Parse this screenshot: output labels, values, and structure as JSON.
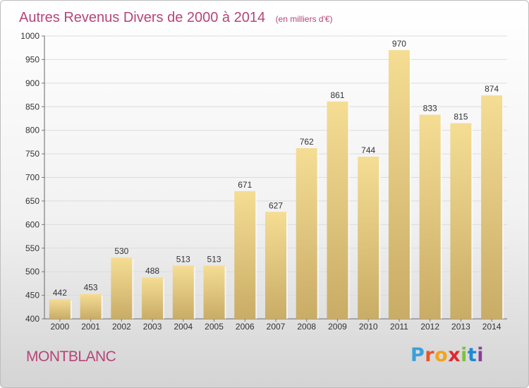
{
  "chart_data": {
    "type": "bar",
    "title": "Autres Revenus Divers de 2000 à 2014",
    "subtitle": "(en milliers d'€)",
    "categories": [
      "2000",
      "2001",
      "2002",
      "2003",
      "2004",
      "2005",
      "2006",
      "2007",
      "2008",
      "2009",
      "2010",
      "2011",
      "2012",
      "2013",
      "2014"
    ],
    "values": [
      442,
      453,
      530,
      488,
      513,
      513,
      671,
      627,
      762,
      861,
      744,
      970,
      833,
      815,
      874
    ],
    "ylim": [
      400,
      1000
    ],
    "yticks": [
      400,
      450,
      500,
      550,
      600,
      650,
      700,
      750,
      800,
      850,
      900,
      950,
      1000
    ],
    "grid": true,
    "legend": "none",
    "bar_color": "#f0d88a",
    "bar_shade": "#c9ac66"
  },
  "commune": "MONTBLANC",
  "logo": {
    "text": "Proxiti",
    "letter_colors": [
      "#3aa0dc",
      "#e8542a",
      "#f3a31c",
      "#e2282f",
      "#7dc142",
      "#1e88d8",
      "#8b3f98"
    ]
  }
}
